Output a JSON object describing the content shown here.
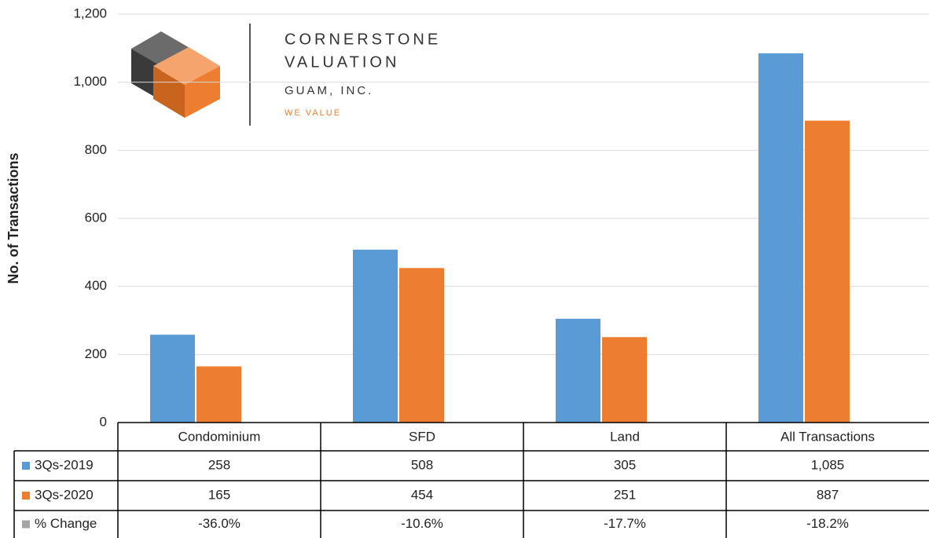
{
  "chart_data": {
    "type": "bar",
    "y_label": "No. of Transactions",
    "categories": [
      "Condominium",
      "SFD",
      "Land",
      "All Transactions"
    ],
    "series": [
      {
        "name": "3Qs-2019",
        "color": "#5b9bd5",
        "values": [
          258,
          508,
          305,
          1085
        ],
        "value_labels": [
          "258",
          "508",
          "305",
          "1,085"
        ]
      },
      {
        "name": "3Qs-2020",
        "color": "#ed7d31",
        "values": [
          165,
          454,
          251,
          887
        ],
        "value_labels": [
          "165",
          "454",
          "251",
          "887"
        ]
      }
    ],
    "change": {
      "name": "% Change",
      "color": "#a5a5a5",
      "values": [
        -36.0,
        -10.6,
        -17.7,
        -18.2
      ],
      "value_labels": [
        "-36.0%",
        "-10.6%",
        "-17.7%",
        "-18.2%"
      ]
    },
    "ylim": [
      0,
      1200
    ],
    "yticks": [
      0,
      200,
      400,
      600,
      800,
      {
        "value": 1000,
        "label": "1,000"
      },
      {
        "value": 1200,
        "label": "1,200"
      }
    ],
    "grid": true
  },
  "logo": {
    "line1": "CORNERSTONE",
    "line2": "VALUATION",
    "line3": "GUAM, INC.",
    "tagline": "WE VALUE"
  }
}
